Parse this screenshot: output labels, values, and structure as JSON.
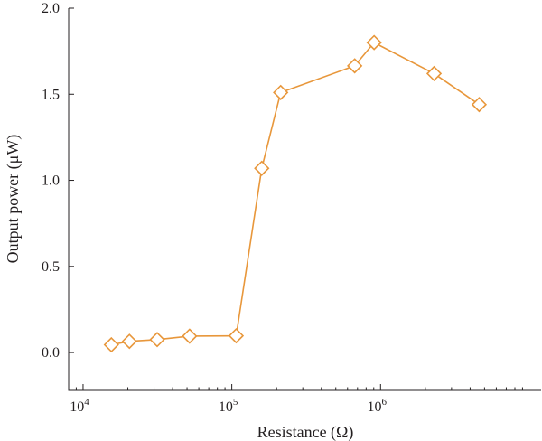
{
  "chart_data": {
    "type": "scatter",
    "xscale": "log",
    "xlabel": "Resistance (Ω)",
    "ylabel": "Output power (μW)",
    "xlim": [
      8000,
      12000000
    ],
    "ylim": [
      -0.22,
      2.0
    ],
    "xticks": [
      {
        "value": 10000,
        "base": "10",
        "exp": "4"
      },
      {
        "value": 100000,
        "base": "10",
        "exp": "5"
      },
      {
        "value": 1000000,
        "base": "10",
        "exp": "6"
      }
    ],
    "yticks": [
      {
        "value": 0.0,
        "label": "0.0"
      },
      {
        "value": 0.5,
        "label": "0.5"
      },
      {
        "value": 1.0,
        "label": "1.0"
      },
      {
        "value": 1.5,
        "label": "1.5"
      },
      {
        "value": 2.0,
        "label": "2.0"
      }
    ],
    "grid": false,
    "legend": "none",
    "series": [
      {
        "color": "#e8973b",
        "marker": "diamond",
        "x": [
          15500,
          20500,
          31500,
          52000,
          107000,
          159000,
          213000,
          670000,
          905000,
          2290000,
          4600000
        ],
        "y": [
          0.045,
          0.065,
          0.075,
          0.095,
          0.097,
          1.07,
          1.51,
          1.665,
          1.8,
          1.62,
          1.44
        ]
      }
    ]
  }
}
